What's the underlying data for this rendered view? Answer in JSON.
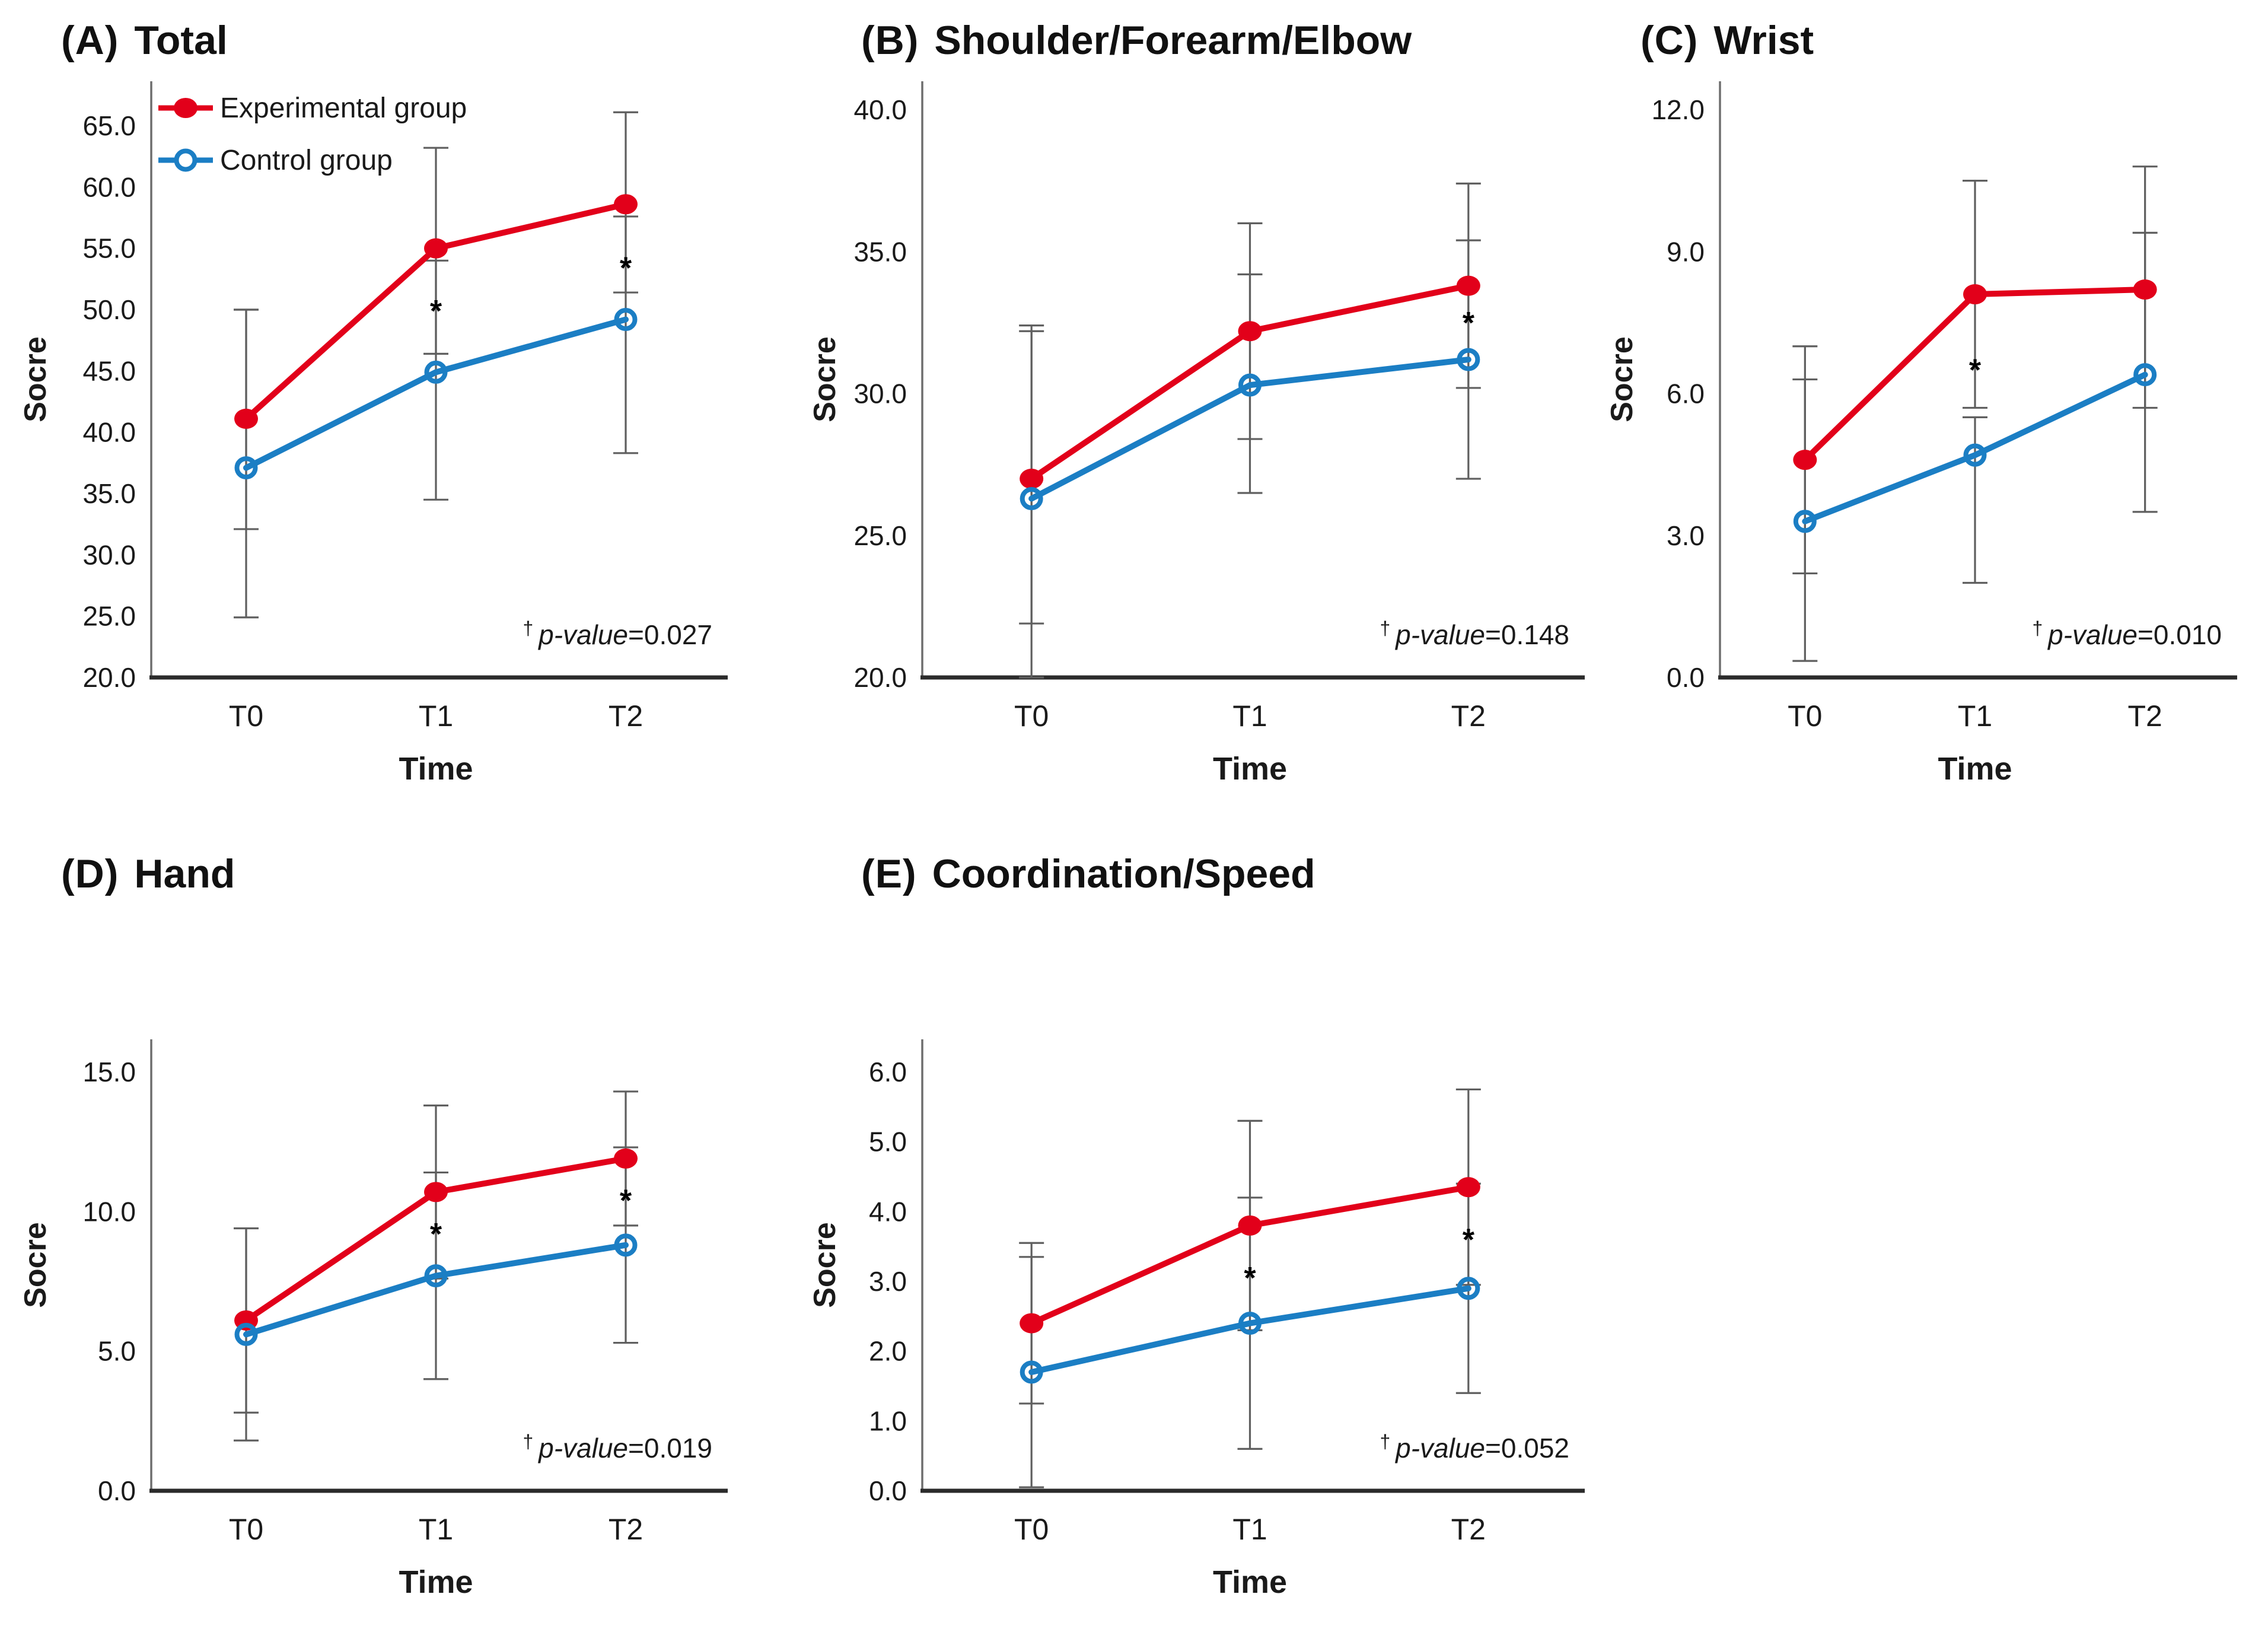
{
  "figure": {
    "background": "#ffffff",
    "x_axis_label": "Time",
    "y_axis_label": "Socre",
    "categories": [
      "T0",
      "T1",
      "T2"
    ]
  },
  "colors": {
    "experimental": "#e2001a",
    "control": "#1b7ec4",
    "error_bar": "#5f5f5f",
    "y_axis": "#6e6e6e",
    "x_axis": "#2b2b2b",
    "text": "#1a1a1a",
    "asterisk": "#000000"
  },
  "legend": {
    "experimental_label": "Experimental group",
    "control_label": "Control group"
  },
  "chart_data": [
    {
      "id": "A",
      "type": "line",
      "title_tag": "(A)",
      "title_text": "Total",
      "ylabel": "Socre",
      "xlabel": "Time",
      "categories": [
        "T0",
        "T1",
        "T2"
      ],
      "ylim": [
        20,
        65
      ],
      "ytick_step": 5,
      "yticks": [
        "20.0",
        "25.0",
        "30.0",
        "35.0",
        "40.0",
        "45.0",
        "50.0",
        "55.0",
        "60.0",
        "65.0"
      ],
      "grid": false,
      "legend_position": "top-left-inside",
      "show_legend": true,
      "p_value": {
        "dagger": "†",
        "italic": "p-value",
        "rest": "=0.027"
      },
      "series": [
        {
          "name": "Experimental group",
          "role": "experimental",
          "marker": "filled-circle",
          "values": [
            41.1,
            55.0,
            58.6
          ],
          "err_lo": [
            32.1,
            46.4,
            51.4
          ],
          "err_hi": [
            50.0,
            63.2,
            66.1
          ]
        },
        {
          "name": "Control group",
          "role": "control",
          "marker": "open-circle",
          "values": [
            37.1,
            44.9,
            49.2
          ],
          "err_lo": [
            24.9,
            34.5,
            38.3
          ],
          "err_hi": [
            50.0,
            54.0,
            57.6
          ]
        }
      ],
      "significance": [
        {
          "category_index": 1,
          "y": 49.9,
          "symbol": "*"
        },
        {
          "category_index": 2,
          "y": 53.4,
          "symbol": "*"
        }
      ]
    },
    {
      "id": "B",
      "type": "line",
      "title_tag": "(B)",
      "title_text": "Shoulder/Forearm/Elbow",
      "ylabel": "Socre",
      "xlabel": "Time",
      "categories": [
        "T0",
        "T1",
        "T2"
      ],
      "ylim": [
        20,
        40
      ],
      "ytick_step": 5,
      "yticks": [
        "20.0",
        "25.0",
        "30.0",
        "35.0",
        "40.0"
      ],
      "grid": false,
      "show_legend": false,
      "p_value": {
        "dagger": "†",
        "italic": "p-value",
        "rest": "=0.148"
      },
      "series": [
        {
          "name": "Experimental group",
          "role": "experimental",
          "marker": "filled-circle",
          "values": [
            27.0,
            32.2,
            33.8
          ],
          "err_lo": [
            21.9,
            28.4,
            30.2
          ],
          "err_hi": [
            32.2,
            36.0,
            37.4
          ]
        },
        {
          "name": "Control group",
          "role": "control",
          "marker": "open-circle",
          "values": [
            26.3,
            30.3,
            31.2
          ],
          "err_lo": [
            20.0,
            26.5,
            27.0
          ],
          "err_hi": [
            32.4,
            34.2,
            35.4
          ]
        }
      ],
      "significance": [
        {
          "category_index": 2,
          "y": 32.5,
          "symbol": "*"
        }
      ]
    },
    {
      "id": "C",
      "type": "line",
      "title_tag": "(C)",
      "title_text": "Wrist",
      "ylabel": "Socre",
      "xlabel": "Time",
      "categories": [
        "T0",
        "T1",
        "T2"
      ],
      "ylim": [
        0,
        12
      ],
      "ytick_step": 3,
      "yticks": [
        "0.0",
        "3.0",
        "6.0",
        "9.0",
        "12.0"
      ],
      "grid": false,
      "show_legend": false,
      "p_value": {
        "dagger": "†",
        "italic": "p-value",
        "rest": "=0.010"
      },
      "series": [
        {
          "name": "Experimental group",
          "role": "experimental",
          "marker": "filled-circle",
          "values": [
            4.6,
            8.1,
            8.2
          ],
          "err_lo": [
            2.2,
            5.7,
            5.7
          ],
          "err_hi": [
            7.0,
            10.5,
            10.8
          ]
        },
        {
          "name": "Control group",
          "role": "control",
          "marker": "open-circle",
          "values": [
            3.3,
            4.7,
            6.4
          ],
          "err_lo": [
            0.35,
            2.0,
            3.5
          ],
          "err_hi": [
            6.3,
            5.5,
            9.4
          ]
        }
      ],
      "significance": [
        {
          "category_index": 1,
          "y": 6.5,
          "symbol": "*"
        }
      ]
    },
    {
      "id": "D",
      "type": "line",
      "title_tag": "(D)",
      "title_text": "Hand",
      "ylabel": "Socre",
      "xlabel": "Time",
      "categories": [
        "T0",
        "T1",
        "T2"
      ],
      "ylim": [
        0,
        15
      ],
      "ytick_step": 5,
      "yticks": [
        "0.0",
        "5.0",
        "10.0",
        "15.0"
      ],
      "grid": false,
      "show_legend": false,
      "p_value": {
        "dagger": "†",
        "italic": "p-value",
        "rest": "=0.019"
      },
      "series": [
        {
          "name": "Experimental group",
          "role": "experimental",
          "marker": "filled-circle",
          "values": [
            6.1,
            10.7,
            11.9
          ],
          "err_lo": [
            2.8,
            7.6,
            9.5
          ],
          "err_hi": [
            9.4,
            13.8,
            14.3
          ]
        },
        {
          "name": "Control group",
          "role": "control",
          "marker": "open-circle",
          "values": [
            5.6,
            7.7,
            8.8
          ],
          "err_lo": [
            1.8,
            4.0,
            5.3
          ],
          "err_hi": [
            9.4,
            11.4,
            12.3
          ]
        }
      ],
      "significance": [
        {
          "category_index": 1,
          "y": 9.2,
          "symbol": "*"
        },
        {
          "category_index": 2,
          "y": 10.4,
          "symbol": "*"
        }
      ]
    },
    {
      "id": "E",
      "type": "line",
      "title_tag": "(E)",
      "title_text": "Coordination/Speed",
      "ylabel": "Socre",
      "xlabel": "Time",
      "categories": [
        "T0",
        "T1",
        "T2"
      ],
      "ylim": [
        0,
        6
      ],
      "ytick_step": 1,
      "yticks": [
        "0.0",
        "1.0",
        "2.0",
        "3.0",
        "4.0",
        "5.0",
        "6.0"
      ],
      "grid": false,
      "show_legend": false,
      "p_value": {
        "dagger": "†",
        "italic": "p-value",
        "rest": "=0.052"
      },
      "series": [
        {
          "name": "Experimental group",
          "role": "experimental",
          "marker": "filled-circle",
          "values": [
            2.4,
            3.8,
            4.35
          ],
          "err_lo": [
            1.25,
            2.3,
            2.95
          ],
          "err_hi": [
            3.55,
            5.3,
            5.75
          ]
        },
        {
          "name": "Control group",
          "role": "control",
          "marker": "open-circle",
          "values": [
            1.7,
            2.4,
            2.9
          ],
          "err_lo": [
            0.05,
            0.6,
            1.4
          ],
          "err_hi": [
            3.35,
            4.2,
            4.4
          ]
        }
      ],
      "significance": [
        {
          "category_index": 1,
          "y": 3.05,
          "symbol": "*"
        },
        {
          "category_index": 2,
          "y": 3.6,
          "symbol": "*"
        }
      ]
    }
  ]
}
